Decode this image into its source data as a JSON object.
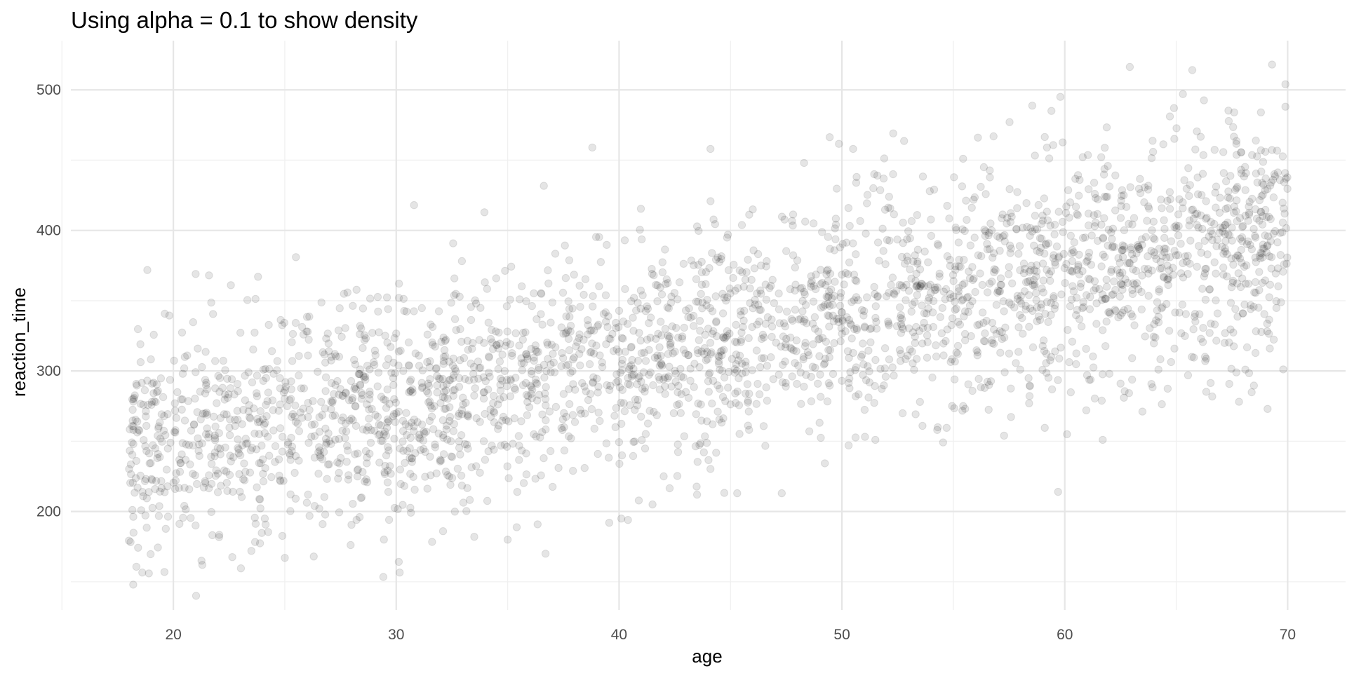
{
  "chart_data": {
    "type": "scatter",
    "title": "Using alpha = 0.1 to show density",
    "xlabel": "age",
    "ylabel": "reaction_time",
    "xlim": [
      15.4,
      72.6
    ],
    "ylim": [
      130,
      535
    ],
    "x_ticks": [
      20,
      30,
      40,
      50,
      60,
      70
    ],
    "y_ticks": [
      200,
      300,
      400,
      500
    ],
    "x_minor_ticks": [
      15,
      25,
      35,
      45,
      55,
      65
    ],
    "y_minor_ticks": [
      150,
      250,
      350,
      450
    ],
    "grid": true,
    "legend": "none",
    "point_color": "#000000",
    "point_alpha": 0.1,
    "n_points": 3000,
    "x_range": [
      18,
      70
    ],
    "trend": {
      "intercept": 188,
      "slope": 3.0,
      "residual_sd": 40
    },
    "points": [
      [
        18.2,
        148
      ],
      [
        18.9,
        156
      ],
      [
        19.6,
        157
      ],
      [
        21.3,
        162
      ],
      [
        23.5,
        172
      ],
      [
        24.1,
        195
      ],
      [
        25.0,
        167
      ],
      [
        26.3,
        168
      ],
      [
        36.7,
        170
      ],
      [
        35.0,
        180
      ],
      [
        33.5,
        182
      ],
      [
        32.1,
        186
      ],
      [
        40.1,
        195
      ],
      [
        40.4,
        194
      ],
      [
        41.5,
        205
      ],
      [
        42.0,
        225
      ],
      [
        43.5,
        212
      ],
      [
        45.3,
        213
      ],
      [
        47.3,
        213
      ],
      [
        59.7,
        214
      ],
      [
        60.1,
        255
      ],
      [
        61.7,
        251
      ],
      [
        50.3,
        247
      ],
      [
        51.5,
        251
      ],
      [
        38.8,
        459
      ],
      [
        30.8,
        418
      ],
      [
        25.5,
        381
      ],
      [
        21.0,
        369
      ],
      [
        21.6,
        368
      ],
      [
        23.8,
        367
      ],
      [
        44.1,
        458
      ],
      [
        48.3,
        448
      ],
      [
        50.5,
        458
      ],
      [
        52.3,
        469
      ],
      [
        56.1,
        466
      ],
      [
        59.4,
        485
      ],
      [
        59.8,
        495
      ],
      [
        64.9,
        487
      ],
      [
        65.3,
        497
      ],
      [
        67.6,
        484
      ],
      [
        68.8,
        484
      ],
      [
        69.3,
        518
      ],
      [
        69.9,
        504
      ],
      [
        69.9,
        488
      ],
      [
        69.0,
        456
      ],
      [
        68.8,
        457
      ],
      [
        69.1,
        273
      ],
      [
        68.1,
        301
      ],
      [
        67.7,
        299
      ],
      [
        66.3,
        307
      ],
      [
        64.2,
        301
      ],
      [
        62.5,
        291
      ],
      [
        61.0,
        297
      ],
      [
        58.0,
        301
      ],
      [
        56.6,
        290
      ],
      [
        54.3,
        260
      ],
      [
        53.5,
        278
      ],
      [
        58.4,
        277
      ],
      [
        62.0,
        298
      ],
      [
        65.7,
        310
      ],
      [
        69.2,
        316
      ]
    ]
  }
}
